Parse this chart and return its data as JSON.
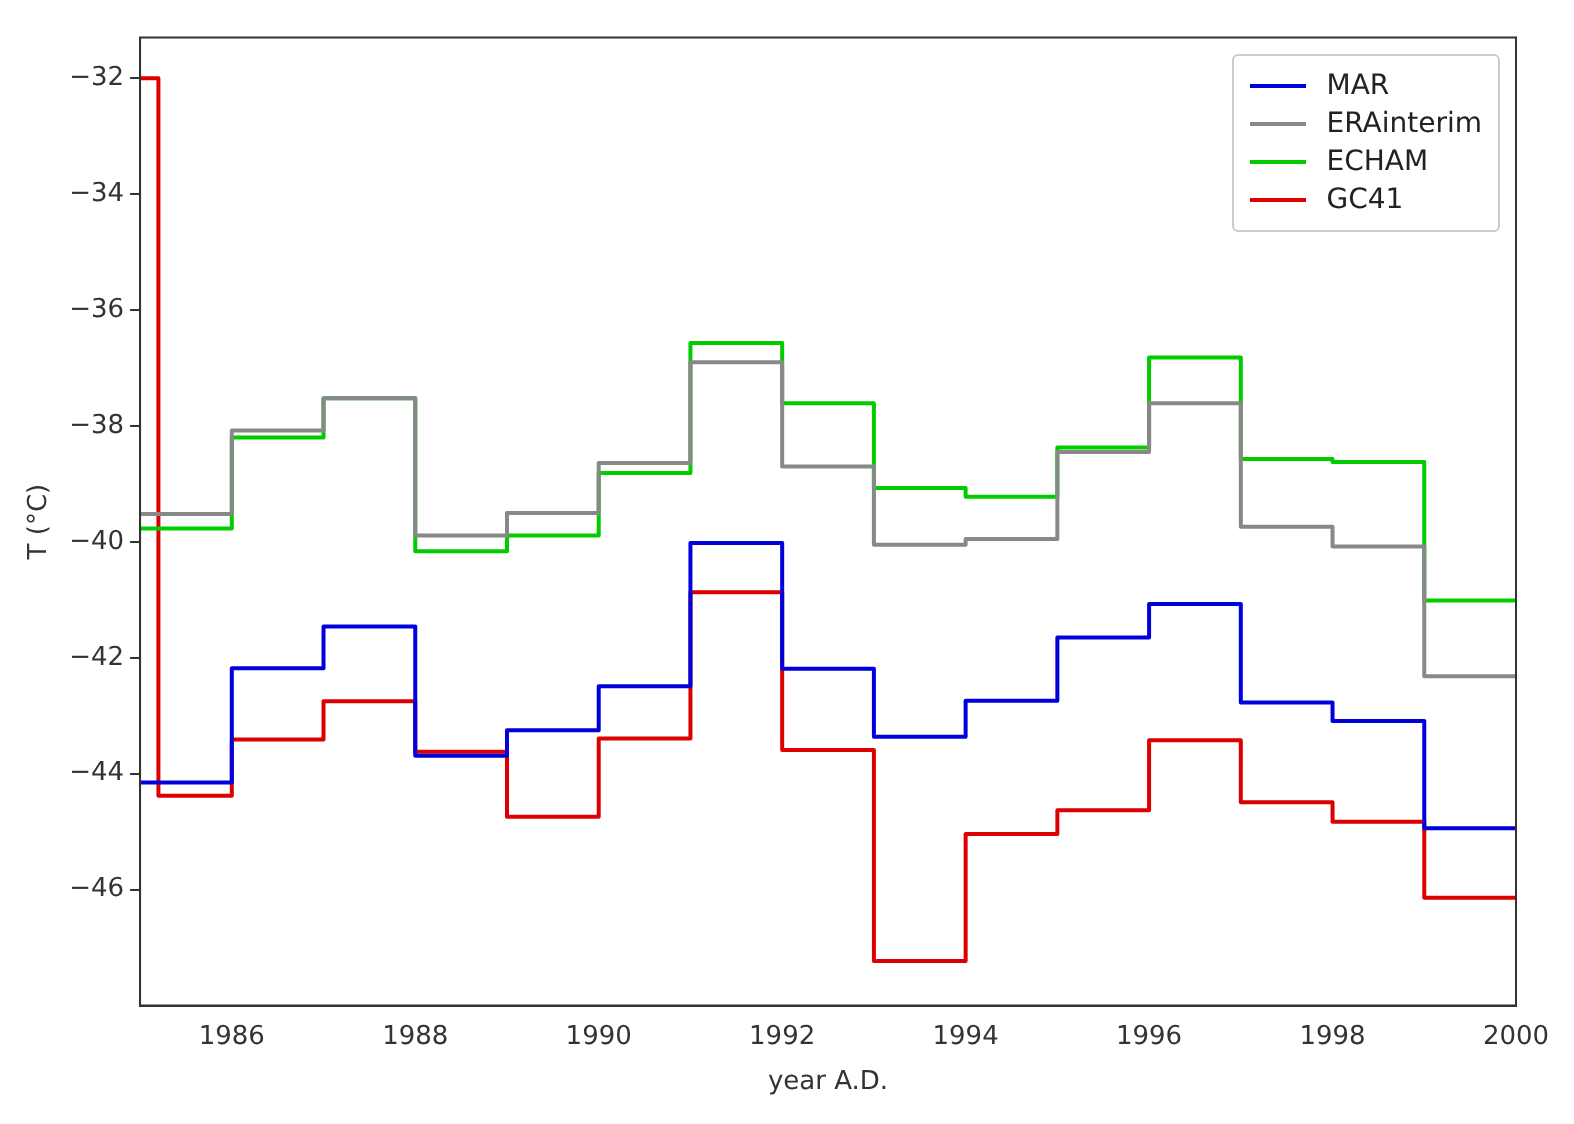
{
  "chart_data": {
    "type": "step",
    "xlabel": "year A.D.",
    "ylabel": "T (°C)",
    "xlim": [
      1985,
      2000
    ],
    "xticks": [
      1986,
      1988,
      1990,
      1992,
      1994,
      1996,
      1998,
      2000
    ],
    "ylim": [
      -48,
      -31.3
    ],
    "yticks": [
      -46,
      -44,
      -42,
      -40,
      -38,
      -36,
      -34,
      -32
    ],
    "grid": false,
    "legend": "top right",
    "marker": "none",
    "line_style": "solid",
    "x": [
      1985,
      1986,
      1987,
      1988,
      1989,
      1990,
      1991,
      1992,
      1993,
      1994,
      1995,
      1996,
      1997,
      1998,
      1999,
      2000
    ],
    "series": [
      {
        "name": "MAR",
        "color": "#0000dd",
        "values": [
          -44.15,
          -42.18,
          -41.46,
          -43.69,
          -43.25,
          -42.49,
          -40.02,
          -42.19,
          -43.36,
          -42.74,
          -41.65,
          -41.07,
          -42.77,
          -43.09,
          -44.94,
          -44.94
        ]
      },
      {
        "name": "ERAinterim",
        "color": "#888888",
        "values": [
          -39.52,
          -38.08,
          -37.52,
          -39.89,
          -39.5,
          -38.64,
          -36.9,
          -38.7,
          -40.05,
          -39.95,
          -38.45,
          -37.61,
          -39.74,
          -40.08,
          -42.32,
          -42.32
        ]
      },
      {
        "name": "ECHAM",
        "color": "#00cc00",
        "values": [
          -39.77,
          -38.2,
          -37.52,
          -40.16,
          -39.89,
          -38.81,
          -36.57,
          -37.61,
          -39.07,
          -39.22,
          -38.37,
          -36.82,
          -38.57,
          -38.62,
          -41.01,
          -41.01
        ]
      },
      {
        "name": "GC41",
        "color": "#dd0000",
        "x": [
          1985,
          1985.2,
          1986,
          1987,
          1988,
          1989,
          1990,
          1991,
          1992,
          1993,
          1994,
          1995,
          1996,
          1997,
          1998,
          1999,
          2000
        ],
        "values": [
          -32,
          -44.38,
          -43.41,
          -42.75,
          -43.62,
          -44.74,
          -43.39,
          -40.87,
          -43.59,
          -47.23,
          -45.04,
          -44.63,
          -43.42,
          -44.49,
          -44.83,
          -46.14,
          -46.14
        ]
      }
    ]
  }
}
